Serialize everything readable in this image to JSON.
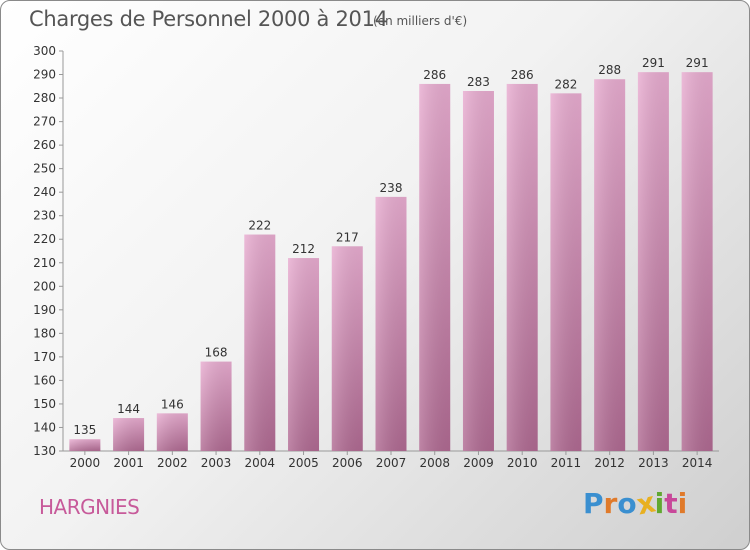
{
  "header": {
    "title": "Charges de Personnel 2000 à 2014",
    "subtitle": "(en milliers d'€)"
  },
  "footer": {
    "place": "HARGNIES",
    "logo": "Proxiti"
  },
  "colors": {
    "bar_light": "#e8acd0",
    "bar_dark": "#b06a92",
    "place_text": "#c75a9a",
    "logo_letters": [
      "#3a8fd0",
      "#e07a2a",
      "#3a8fd0",
      "#e8b020",
      "#60a830",
      "#c8489a",
      "#e07a2a"
    ]
  },
  "chart_data": {
    "type": "bar",
    "title": "Charges de Personnel 2000 à 2014",
    "subtitle": "(en milliers d'€)",
    "categories": [
      "2000",
      "2001",
      "2002",
      "2003",
      "2004",
      "2005",
      "2006",
      "2007",
      "2008",
      "2009",
      "2010",
      "2011",
      "2012",
      "2013",
      "2014"
    ],
    "values": [
      135,
      144,
      146,
      168,
      222,
      212,
      217,
      238,
      286,
      283,
      286,
      282,
      288,
      291,
      291
    ],
    "ylim": [
      130,
      300
    ],
    "yticks": [
      130,
      140,
      150,
      160,
      170,
      180,
      190,
      200,
      210,
      220,
      230,
      240,
      250,
      260,
      270,
      280,
      290,
      300
    ],
    "grid": false,
    "xlabel": "",
    "ylabel": ""
  }
}
